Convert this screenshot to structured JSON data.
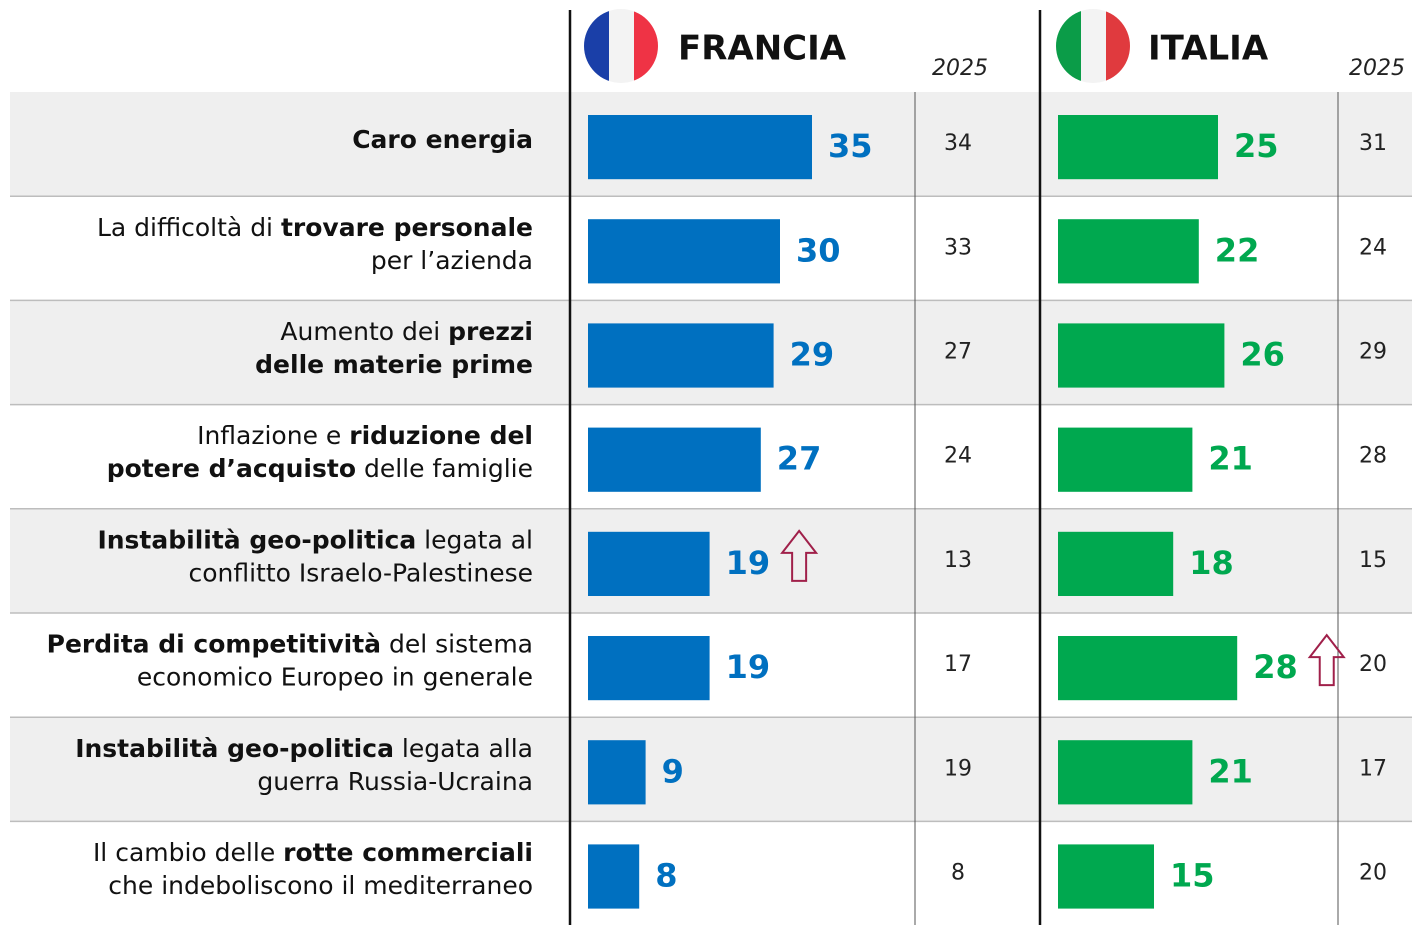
{
  "chart_data": {
    "type": "bar",
    "orientation": "horizontal",
    "categories": [
      [
        [
          {
            "text": "Caro energia",
            "bold": true
          }
        ]
      ],
      [
        [
          {
            "text": "La difficoltà di ",
            "bold": false
          },
          {
            "text": "trovare personale",
            "bold": true
          }
        ],
        [
          {
            "text": "per l’azienda",
            "bold": false
          }
        ]
      ],
      [
        [
          {
            "text": "Aumento dei ",
            "bold": false
          },
          {
            "text": "prezzi",
            "bold": true
          }
        ],
        [
          {
            "text": "delle materie prime",
            "bold": true
          }
        ]
      ],
      [
        [
          {
            "text": "Inflazione e ",
            "bold": false
          },
          {
            "text": "riduzione del",
            "bold": true
          }
        ],
        [
          {
            "text": "potere d’acquisto",
            "bold": true
          },
          {
            "text": " delle famiglie",
            "bold": false
          }
        ]
      ],
      [
        [
          {
            "text": "Instabilità geo-politica",
            "bold": true
          },
          {
            "text": " legata al",
            "bold": false
          }
        ],
        [
          {
            "text": "conflitto Israelo-Palestinese",
            "bold": false
          }
        ]
      ],
      [
        [
          {
            "text": "Perdita di competitività",
            "bold": true
          },
          {
            "text": " del sistema",
            "bold": false
          }
        ],
        [
          {
            "text": "economico Europeo in generale",
            "bold": false
          }
        ]
      ],
      [
        [
          {
            "text": "Instabilità geo-politica",
            "bold": true
          },
          {
            "text": " legata alla",
            "bold": false
          }
        ],
        [
          {
            "text": "guerra Russia-Ucraina",
            "bold": false
          }
        ]
      ],
      [
        [
          {
            "text": "Il cambio delle ",
            "bold": false
          },
          {
            "text": "rotte commerciali",
            "bold": true
          }
        ],
        [
          {
            "text": "che indeboliscono il mediterraneo",
            "bold": false
          }
        ]
      ]
    ],
    "previous_label": "2025",
    "series": [
      {
        "name": "FRANCIA",
        "color": "#0070c0",
        "values": [
          35,
          30,
          29,
          27,
          19,
          19,
          9,
          8
        ],
        "previous": [
          34,
          33,
          27,
          24,
          13,
          17,
          19,
          8
        ],
        "arrows": [
          false,
          false,
          false,
          false,
          true,
          false,
          false,
          false
        ]
      },
      {
        "name": "ITALIA",
        "color": "#00a84f",
        "values": [
          25,
          22,
          26,
          21,
          18,
          28,
          21,
          15
        ],
        "previous": [
          31,
          24,
          29,
          28,
          15,
          20,
          17,
          20
        ],
        "arrows": [
          false,
          false,
          false,
          false,
          false,
          true,
          false,
          false
        ]
      }
    ]
  }
}
